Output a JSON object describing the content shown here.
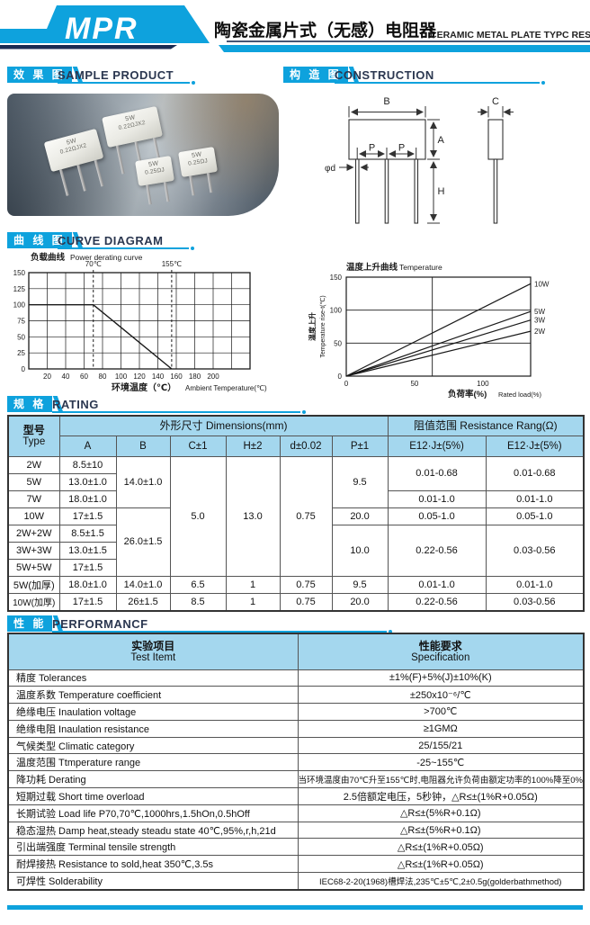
{
  "colors": {
    "accent": "#0ea2dd",
    "navy": "#1a2b52",
    "table_header_bg": "#a4d7ee",
    "chart_line": "#1a1a1a"
  },
  "header": {
    "logo": "MPR",
    "title_zh": "陶瓷金属片式（无感）电阻器",
    "title_en": "CERAMIC METAL PLATE TYPC RESISTORS"
  },
  "sections": {
    "sample": {
      "zh": "效 果 图",
      "en": "SAMPLE PRODUCT"
    },
    "construction": {
      "zh": "构 造 图",
      "en": "CONSTRUCTION"
    },
    "curve": {
      "zh": "曲 线 图",
      "en": "CURVE DIAGRAM"
    },
    "rating": {
      "zh": "规 格",
      "en": "RATING"
    },
    "performance": {
      "zh": "性 能",
      "en": "PERFORMANCF"
    }
  },
  "photo": {
    "resistors": [
      {
        "line1": "5W",
        "line2": "0.22ΩJX2"
      },
      {
        "line1": "5W",
        "line2": "0.22ΩJX2"
      },
      {
        "line1": "5W",
        "line2": "0.25ΩJ"
      },
      {
        "line1": "5W",
        "line2": "0.25ΩJ"
      }
    ]
  },
  "construction": {
    "labels": {
      "b": "B",
      "a": "A",
      "p": "P",
      "d": "φd",
      "h": "H",
      "c": "C"
    }
  },
  "chart_data": [
    {
      "type": "line",
      "title_zh": "负载曲线",
      "title_en": "Power derating curve",
      "xlabel_zh": "环境温度（℃）",
      "xlabel_en": "Ambient Temperature(℃)",
      "xlim": [
        0,
        240
      ],
      "ylim": [
        0,
        150
      ],
      "xtick_step": 20,
      "ytick_step": 25,
      "xtick_labels": [
        20,
        40,
        60,
        80,
        100,
        120,
        140,
        160,
        180,
        200
      ],
      "ytick_labels": [
        0,
        25,
        50,
        75,
        100,
        125,
        150
      ],
      "grid": true,
      "legend": "none",
      "vlines": [
        {
          "x": 70,
          "label": "70℃"
        },
        {
          "x": 155,
          "label": "155℃"
        }
      ],
      "series": [
        {
          "name": "power-derating",
          "points": [
            [
              0,
              100
            ],
            [
              70,
              100
            ],
            [
              155,
              0
            ]
          ]
        }
      ]
    },
    {
      "type": "line",
      "title_zh": "温度上升曲线",
      "title_en": "Temperature",
      "ylabel_zh": "温度上升",
      "ylabel_en": "Temperature rise-t(℃)",
      "xlabel_zh": "负荷率(%)",
      "xlabel_en": "Rated load(%)",
      "xlim": [
        0,
        135
      ],
      "ylim": [
        0,
        150
      ],
      "xtick_labels": [
        0,
        50,
        100
      ],
      "ytick_labels": [
        0,
        50,
        100,
        150
      ],
      "hgrid": [
        50,
        100
      ],
      "vline_x": 63,
      "legend": "right",
      "series": [
        {
          "name": "10W",
          "points": [
            [
              0,
              0
            ],
            [
              135,
              140
            ]
          ]
        },
        {
          "name": "5W",
          "points": [
            [
              0,
              0
            ],
            [
              135,
              98
            ]
          ]
        },
        {
          "name": "3W",
          "points": [
            [
              0,
              0
            ],
            [
              135,
              85
            ]
          ]
        },
        {
          "name": "2W",
          "points": [
            [
              0,
              0
            ],
            [
              135,
              68
            ]
          ]
        }
      ]
    }
  ],
  "rating_table": {
    "header": {
      "type_zh": "型号",
      "type_en": "Type",
      "dims": "外形尺寸 Dimensions(mm)",
      "res": "阻值范围 Resistance Rang(Ω)",
      "cols": [
        "A",
        "B",
        "C±1",
        "H±2",
        "d±0.02",
        "P±1",
        "E12·J±(5%)",
        "E12·J±(5%)"
      ]
    },
    "rows": [
      {
        "cells": [
          {
            "t": "2W"
          },
          {
            "t": "8.5±10"
          },
          {
            "t": "14.0±1.0",
            "rs": 3
          },
          {
            "t": "5.0",
            "rs": 7
          },
          {
            "t": "13.0",
            "rs": 7
          },
          {
            "t": "0.75",
            "rs": 7
          },
          {
            "t": "9.5",
            "rs": 3
          },
          {
            "t": "0.01-0.68",
            "rs": 2
          },
          {
            "t": "0.01-0.68",
            "rs": 2
          }
        ]
      },
      {
        "cells": [
          {
            "t": "5W"
          },
          {
            "t": "13.0±1.0"
          }
        ]
      },
      {
        "cells": [
          {
            "t": "7W"
          },
          {
            "t": "18.0±1.0"
          },
          {
            "t": "0.01-1.0"
          },
          {
            "t": "0.01-1.0"
          }
        ]
      },
      {
        "cells": [
          {
            "t": "10W"
          },
          {
            "t": "17±1.5"
          },
          {
            "t": "26.0±1.5",
            "rs": 4
          },
          {
            "t": "20.0"
          },
          {
            "t": "0.05-1.0"
          },
          {
            "t": "0.05-1.0"
          }
        ]
      },
      {
        "cells": [
          {
            "t": "2W+2W"
          },
          {
            "t": "8.5±1.5"
          },
          {
            "t": "10.0",
            "rs": 3
          },
          {
            "t": "0.22-0.56",
            "rs": 3
          },
          {
            "t": "0.03-0.56",
            "rs": 3
          }
        ]
      },
      {
        "cells": [
          {
            "t": "3W+3W"
          },
          {
            "t": "13.0±1.5"
          }
        ]
      },
      {
        "cells": [
          {
            "t": "5W+5W"
          },
          {
            "t": "17±1.5"
          }
        ]
      },
      {
        "cells": [
          {
            "t": "5W(加厚)"
          },
          {
            "t": "18.0±1.0"
          },
          {
            "t": "14.0±1.0"
          },
          {
            "t": "6.5"
          },
          {
            "t": "1"
          },
          {
            "t": "0.75"
          },
          {
            "t": "9.5"
          },
          {
            "t": "0.01-1.0"
          },
          {
            "t": "0.01-1.0"
          }
        ]
      },
      {
        "cells": [
          {
            "t": "10W(加厚)"
          },
          {
            "t": "17±1.5"
          },
          {
            "t": "26±1.5"
          },
          {
            "t": "8.5"
          },
          {
            "t": "1"
          },
          {
            "t": "0.75"
          },
          {
            "t": "20.0"
          },
          {
            "t": "0.22-0.56"
          },
          {
            "t": "0.03-0.56"
          }
        ]
      }
    ]
  },
  "performance_table": {
    "header": {
      "item_zh": "实验项目",
      "item_en": "Test Itemt",
      "spec_zh": "性能要求",
      "spec_en": "Specification"
    },
    "rows": [
      [
        "精度 Tolerances",
        "±1%(F)+5%(J)±10%(K)"
      ],
      [
        "温度系数 Temperature coefficient",
        "±250x10⁻⁶/℃"
      ],
      [
        "绝缘电压 Inaulation voltage",
        ">700℃"
      ],
      [
        "绝缘电阻 Inaulation resistance",
        "≥1GMΩ"
      ],
      [
        "气候类型 Climatic category",
        "25/155/21"
      ],
      [
        "温度范围 Ttmperature range",
        "-25~155℃"
      ],
      [
        "降功耗 Derating",
        "当环境温度由70℃升至155℃时,电阻器允许负荷由额定功率的100%降至0%"
      ],
      [
        "短期过载 Short time overload",
        "2.5倍额定电压，5秒钟，△R≤±(1%R+0.05Ω)"
      ],
      [
        "长期试验 Load life P70,70℃,1000hrs,1.5hOn,0.5hOff",
        "△R≤±(5%R+0.1Ω)"
      ],
      [
        "稳态湿热 Damp heat,steady steadu state 40℃,95%,r,h,21d",
        "△R≤±(5%R+0.1Ω)"
      ],
      [
        "引出端强度 Terminal tensile strength",
        "△R≤±(1%R+0.05Ω)"
      ],
      [
        "耐焊接热 Resistance to sold,heat 350℃,3.5s",
        "△R≤±(1%R+0.05Ω)"
      ],
      [
        "可焊性 Solderability",
        "IEC68-2-20(1968)槽焊法,235℃±5℃,2±0.5g(golderbathmethod)"
      ]
    ]
  }
}
